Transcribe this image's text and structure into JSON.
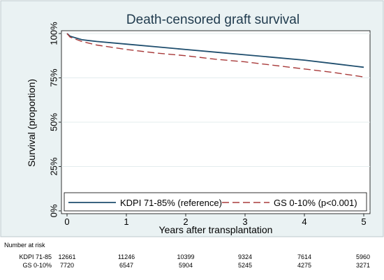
{
  "chart_data": {
    "type": "line",
    "title": "Death-censored graft survival",
    "xlabel": "Years after transplantation",
    "ylabel": "Survival (proportion)",
    "xlim": [
      0,
      5
    ],
    "ylim": [
      0,
      1
    ],
    "x_ticks": [
      0,
      1,
      2,
      3,
      4,
      5
    ],
    "y_ticks": [
      0,
      0.25,
      0.5,
      0.75,
      1.0
    ],
    "y_tick_labels": [
      "0%",
      "25%",
      "50%",
      "75%",
      "100%"
    ],
    "grid": true,
    "legend_position": "bottom",
    "series": [
      {
        "name": "KDPI 71-85% (reference)",
        "color": "#1f4e6e",
        "dash": "solid",
        "points": [
          [
            0,
            1.0
          ],
          [
            0.05,
            0.985
          ],
          [
            0.25,
            0.965
          ],
          [
            0.5,
            0.955
          ],
          [
            1,
            0.94
          ],
          [
            1.5,
            0.925
          ],
          [
            2,
            0.91
          ],
          [
            2.5,
            0.895
          ],
          [
            3,
            0.88
          ],
          [
            3.5,
            0.865
          ],
          [
            4,
            0.85
          ],
          [
            4.5,
            0.83
          ],
          [
            5,
            0.81
          ]
        ]
      },
      {
        "name": "GS 0-10% (p<0.001)",
        "color": "#a83a3a",
        "dash": "dashed",
        "points": [
          [
            0,
            1.0
          ],
          [
            0.05,
            0.98
          ],
          [
            0.25,
            0.955
          ],
          [
            0.5,
            0.935
          ],
          [
            1,
            0.91
          ],
          [
            1.5,
            0.89
          ],
          [
            2,
            0.875
          ],
          [
            2.5,
            0.855
          ],
          [
            3,
            0.84
          ],
          [
            3.5,
            0.82
          ],
          [
            4,
            0.8
          ],
          [
            4.5,
            0.78
          ],
          [
            5,
            0.755
          ]
        ]
      }
    ],
    "risk_table": {
      "title": "Number at risk",
      "rows": [
        {
          "label": "KDPI 71-85",
          "values": [
            "12661",
            "11246",
            "10399",
            "9324",
            "7614",
            "5960"
          ]
        },
        {
          "label": "GS 0-10%",
          "values": [
            "7720",
            "6547",
            "5904",
            "5245",
            "4275",
            "3271"
          ]
        }
      ]
    }
  }
}
